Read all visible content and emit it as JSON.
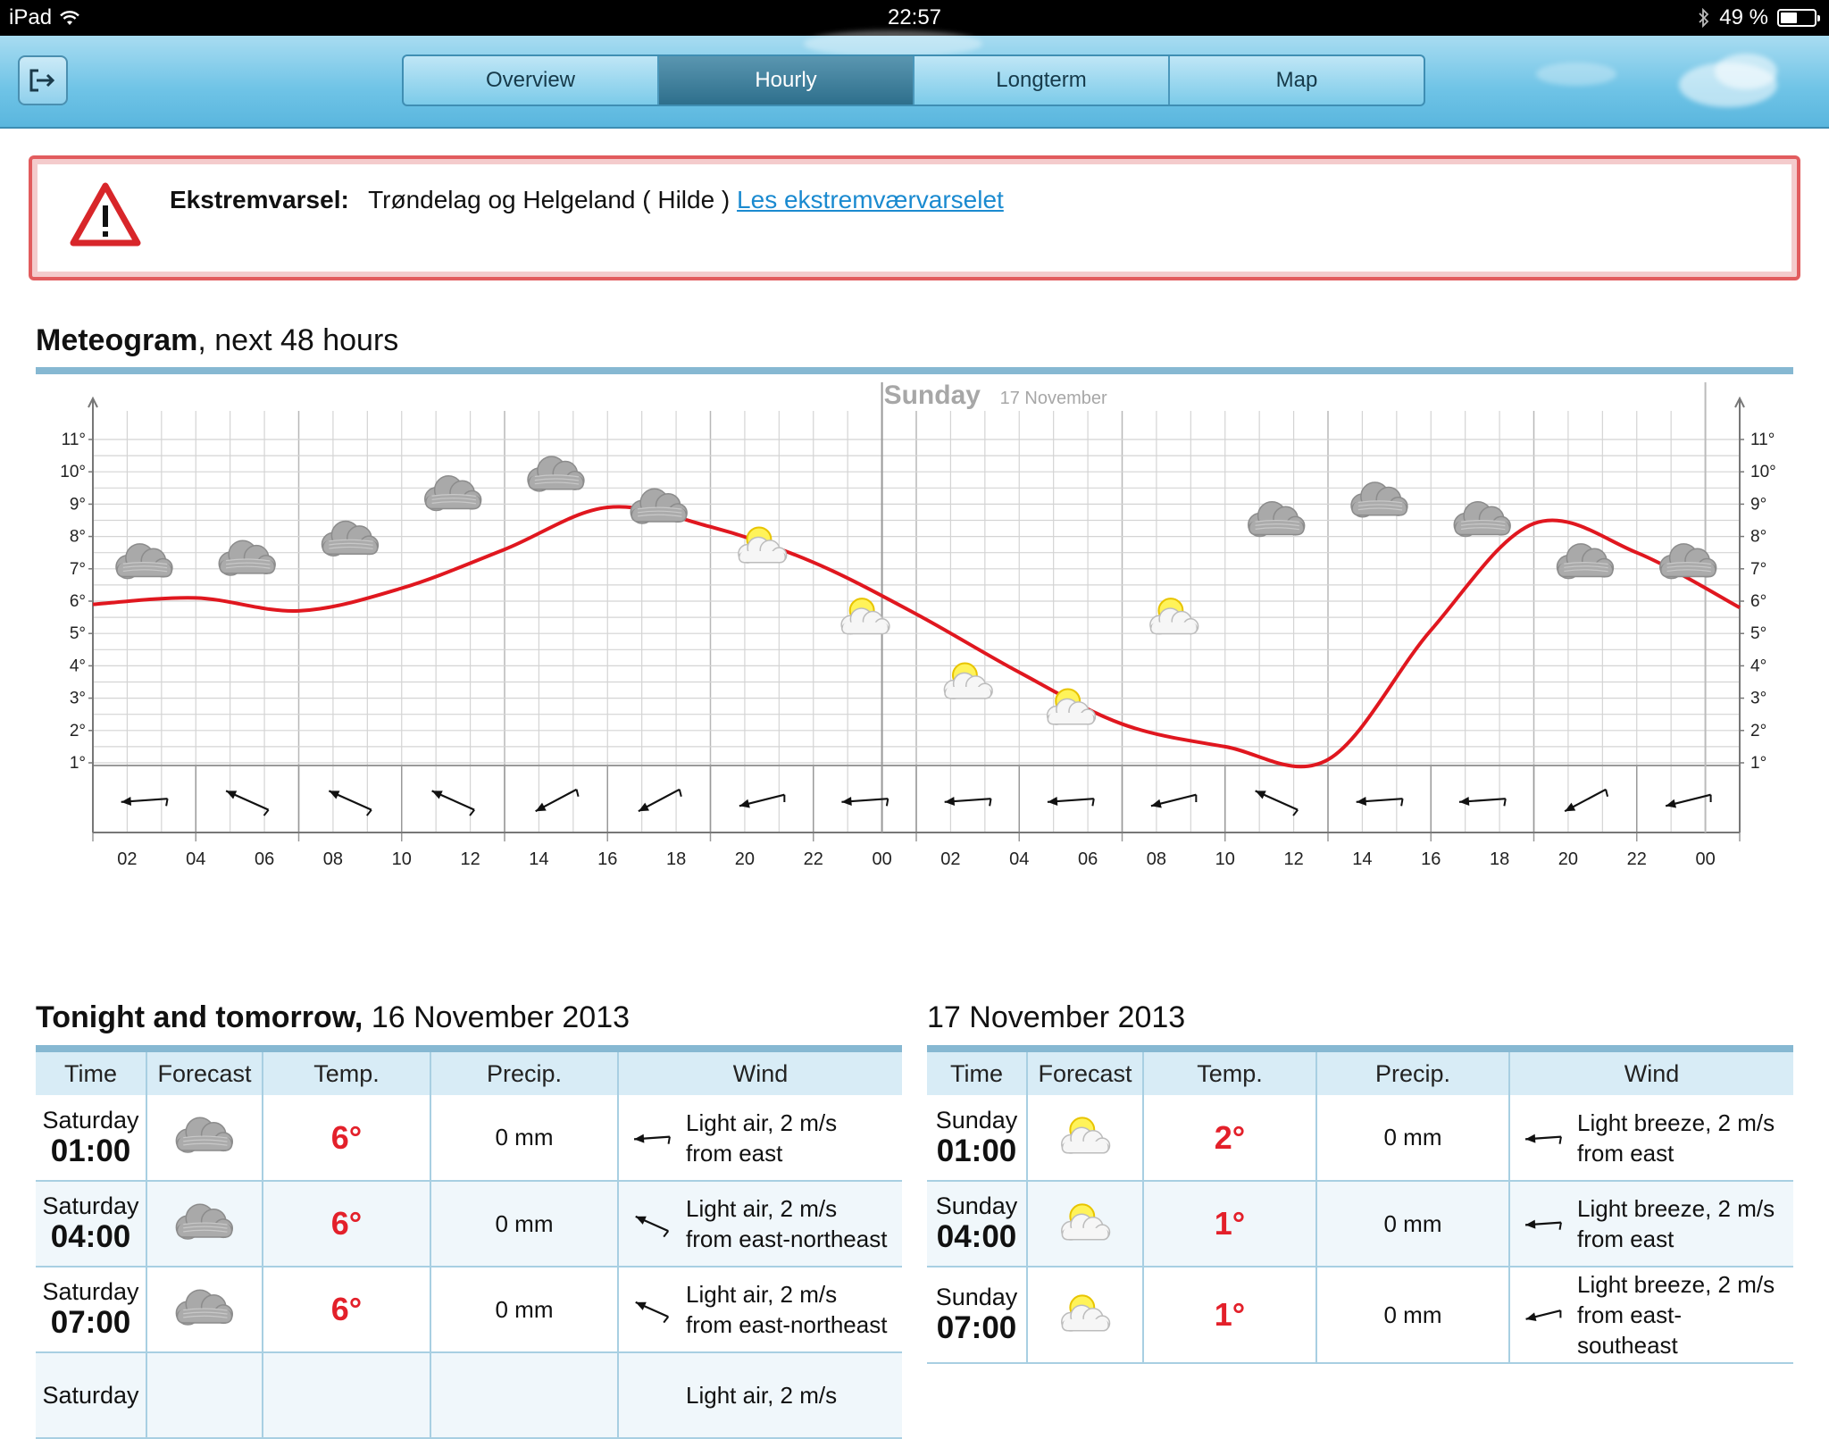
{
  "status_bar": {
    "device": "iPad",
    "time": "22:57",
    "battery": "49 %",
    "battery_level": 0.49
  },
  "nav": {
    "tabs": [
      {
        "label": "Overview",
        "active": false
      },
      {
        "label": "Hourly",
        "active": true
      },
      {
        "label": "Longterm",
        "active": false
      },
      {
        "label": "Map",
        "active": false
      }
    ]
  },
  "alert": {
    "label": "Ekstremvarsel:",
    "message": "Trøndelag og Helgeland ( Hilde )",
    "link": "Les ekstremværvarselet"
  },
  "meteogram": {
    "title_bold": "Meteogram",
    "title_rest": ", next 48 hours",
    "day_label": "Sunday",
    "day_date": "17 November"
  },
  "chart_data": {
    "type": "line",
    "ylim": [
      1,
      11
    ],
    "y_ticks": [
      "1°",
      "2°",
      "3°",
      "4°",
      "5°",
      "6°",
      "7°",
      "8°",
      "9°",
      "10°",
      "11°"
    ],
    "x_ticks": [
      "02",
      "04",
      "06",
      "08",
      "10",
      "12",
      "14",
      "16",
      "18",
      "20",
      "22",
      "00",
      "02",
      "04",
      "06",
      "08",
      "10",
      "12",
      "14",
      "16",
      "18",
      "20",
      "22",
      "00"
    ],
    "series": [
      {
        "hours": [
          0,
          3,
          6,
          9,
          12,
          15,
          18,
          21,
          24,
          27,
          30,
          33,
          36,
          39,
          42,
          45,
          48
        ],
        "values": [
          5.9,
          6.1,
          5.7,
          6.4,
          7.6,
          8.9,
          8.3,
          7.2,
          5.6,
          3.8,
          2.2,
          1.5,
          1.1,
          5.1,
          8.4,
          7.5,
          5.8
        ]
      }
    ],
    "series_extra": {
      "hours": [
        45,
        48
      ],
      "values": [
        5.9,
        5.4
      ]
    },
    "symbols": [
      {
        "hour": 1,
        "temp": 7.2,
        "type": "cloud"
      },
      {
        "hour": 4,
        "temp": 7.3,
        "type": "cloud"
      },
      {
        "hour": 7,
        "temp": 7.9,
        "type": "cloud"
      },
      {
        "hour": 10,
        "temp": 9.3,
        "type": "cloud"
      },
      {
        "hour": 13,
        "temp": 9.9,
        "type": "cloud"
      },
      {
        "hour": 16,
        "temp": 8.9,
        "type": "cloud"
      },
      {
        "hour": 19,
        "temp": 7.6,
        "type": "partly-sunny"
      },
      {
        "hour": 22,
        "temp": 5.4,
        "type": "partly-sunny"
      },
      {
        "hour": 25,
        "temp": 3.4,
        "type": "partly-sunny"
      },
      {
        "hour": 28,
        "temp": 2.6,
        "type": "partly-sunny"
      },
      {
        "hour": 31,
        "temp": 5.4,
        "type": "partly-sunny"
      },
      {
        "hour": 34,
        "temp": 8.5,
        "type": "cloud"
      },
      {
        "hour": 37,
        "temp": 9.1,
        "type": "cloud"
      },
      {
        "hour": 40,
        "temp": 8.5,
        "type": "cloud"
      },
      {
        "hour": 43,
        "temp": 7.2,
        "type": "cloud"
      },
      {
        "hour": 46,
        "temp": 7.2,
        "type": "cloud"
      }
    ],
    "wind_arrows": [
      {
        "hour": 1,
        "dir": "east"
      },
      {
        "hour": 4,
        "dir": "east-northeast"
      },
      {
        "hour": 7,
        "dir": "east-northeast"
      },
      {
        "hour": 10,
        "dir": "east-northeast"
      },
      {
        "hour": 13,
        "dir": "southeast"
      },
      {
        "hour": 16,
        "dir": "southeast"
      },
      {
        "hour": 19,
        "dir": "east-southeast"
      },
      {
        "hour": 22,
        "dir": "east"
      },
      {
        "hour": 25,
        "dir": "east"
      },
      {
        "hour": 28,
        "dir": "east"
      },
      {
        "hour": 31,
        "dir": "east-southeast"
      },
      {
        "hour": 34,
        "dir": "east-northeast"
      },
      {
        "hour": 37,
        "dir": "east"
      },
      {
        "hour": 40,
        "dir": "east"
      },
      {
        "hour": 43,
        "dir": "southeast"
      },
      {
        "hour": 46,
        "dir": "east-southeast"
      }
    ]
  },
  "table_left": {
    "title_bold": "Tonight and tomorrow,",
    "title_rest": " 16 November 2013",
    "headers": [
      "Time",
      "Forecast",
      "Temp.",
      "Precip.",
      "Wind"
    ],
    "rows": [
      {
        "day": "Saturday",
        "time": "01:00",
        "forecast": "cloud",
        "temp": "6°",
        "precip": "0 mm",
        "wind_line1": "Light air, 2 m/s",
        "wind_line2": "from east",
        "wind_dir": "east"
      },
      {
        "day": "Saturday",
        "time": "04:00",
        "forecast": "cloud",
        "temp": "6°",
        "precip": "0 mm",
        "wind_line1": "Light air, 2 m/s",
        "wind_line2": "from east-northeast",
        "wind_dir": "east-northeast"
      },
      {
        "day": "Saturday",
        "time": "07:00",
        "forecast": "cloud",
        "temp": "6°",
        "precip": "0 mm",
        "wind_line1": "Light air, 2 m/s",
        "wind_line2": "from east-northeast",
        "wind_dir": "east-northeast"
      },
      {
        "day": "Saturday",
        "time": "",
        "forecast": "",
        "temp": "",
        "precip": "",
        "wind_line1": "Light air, 2 m/s",
        "wind_line2": "",
        "wind_dir": ""
      }
    ]
  },
  "table_right": {
    "title": "17 November 2013",
    "headers": [
      "Time",
      "Forecast",
      "Temp.",
      "Precip.",
      "Wind"
    ],
    "rows": [
      {
        "day": "Sunday",
        "time": "01:00",
        "forecast": "partly-sunny",
        "temp": "2°",
        "precip": "0 mm",
        "wind_line1": "Light breeze, 2 m/s",
        "wind_line2": "from east",
        "wind_dir": "east"
      },
      {
        "day": "Sunday",
        "time": "04:00",
        "forecast": "partly-sunny",
        "temp": "1°",
        "precip": "0 mm",
        "wind_line1": "Light breeze, 2 m/s",
        "wind_line2": "from east",
        "wind_dir": "east"
      },
      {
        "day": "Sunday",
        "time": "07:00",
        "forecast": "partly-sunny",
        "temp": "1°",
        "precip": "0 mm",
        "wind_line1": "Light breeze, 2 m/s",
        "wind_line2": "from east-",
        "wind_line3": "southeast",
        "wind_dir": "east-southeast"
      }
    ]
  }
}
